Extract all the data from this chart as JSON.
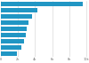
{
  "values": [
    9600,
    4300,
    3600,
    3200,
    3000,
    2900,
    2700,
    2400,
    1900
  ],
  "bar_color": "#2196c4",
  "background_color": "#ffffff",
  "grid_color": "#d0d0d0",
  "figsize": [
    1.0,
    0.71
  ],
  "dpi": 100,
  "xtick_values": [
    0,
    2000,
    4000,
    6000,
    8000,
    10000
  ],
  "xtick_labels": [
    "0",
    "2k",
    "4k",
    "6k",
    "8k",
    "10k"
  ]
}
